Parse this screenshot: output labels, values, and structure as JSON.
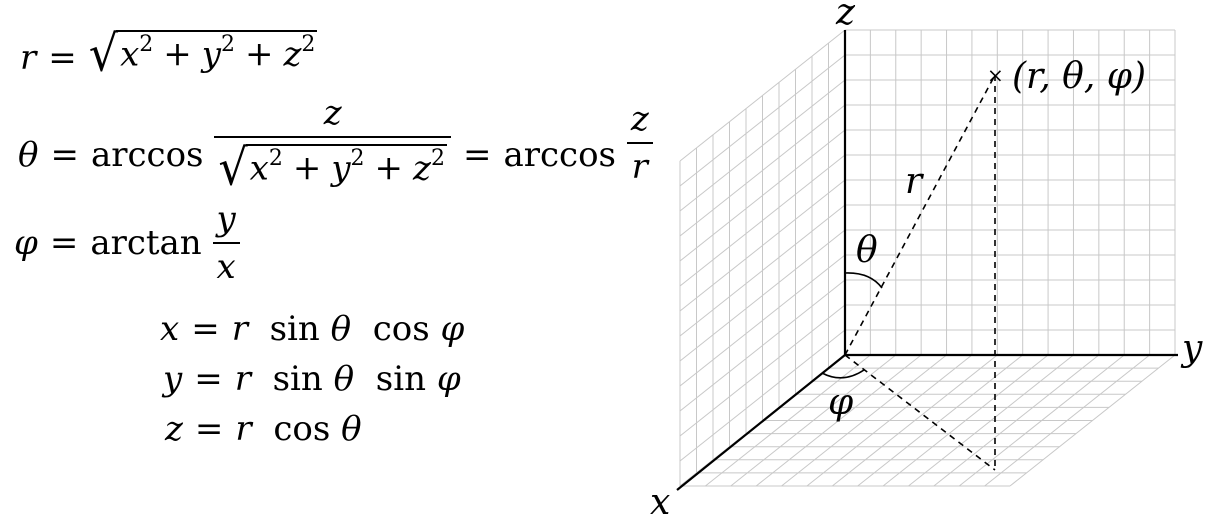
{
  "formulas": {
    "r_lhs": "r",
    "theta_lhs": "θ",
    "phi_lhs": "φ",
    "eq": "=",
    "plus": "+",
    "x": "x",
    "y": "y",
    "z": "z",
    "r": "r",
    "exp2": "2",
    "arccos": "arccos",
    "arctan": "arctan",
    "sin": "sin",
    "cos": "cos",
    "theta": "θ",
    "phi": "φ",
    "radical": "√"
  },
  "diagram": {
    "axis_x": "x",
    "axis_y": "y",
    "axis_z": "z",
    "point_label": "(r, θ, φ)",
    "r_label": "r",
    "theta_label": "θ",
    "phi_label": "φ",
    "marker": "×",
    "grid_color": "#c8c8c8",
    "axis_color": "#000000"
  }
}
